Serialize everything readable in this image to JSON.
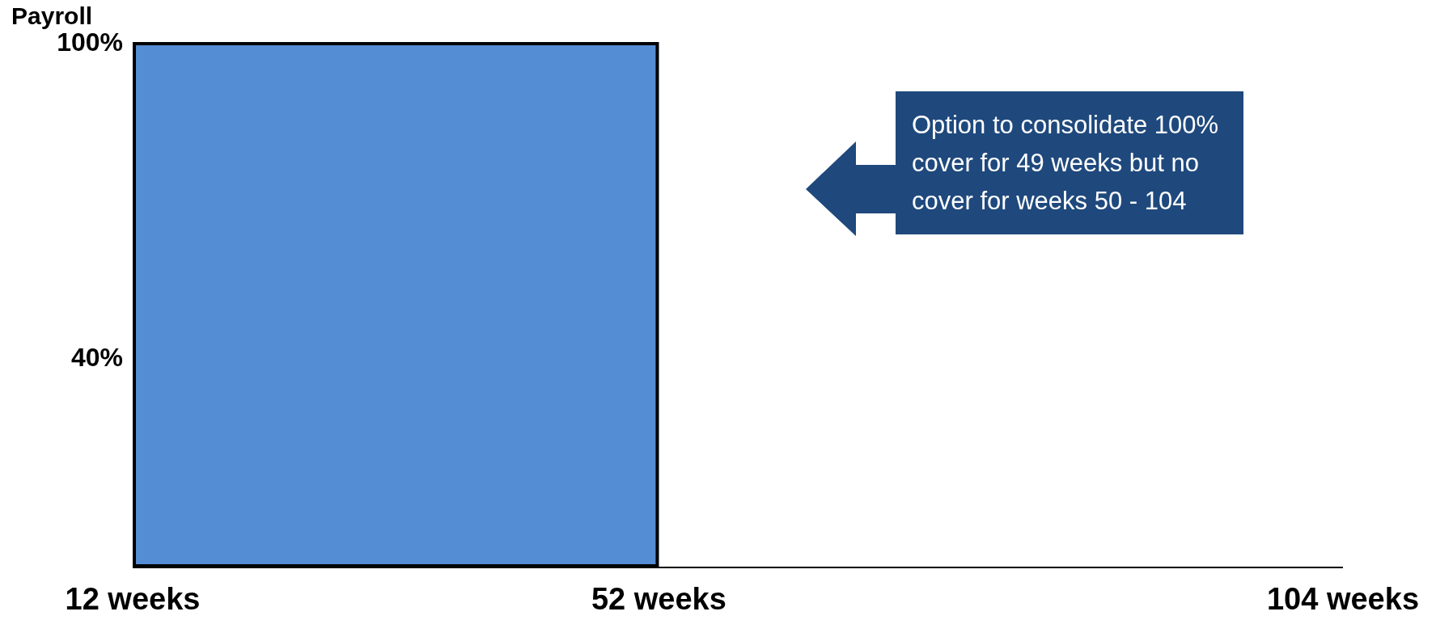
{
  "chart_data": {
    "type": "area",
    "ylabel": "Payroll",
    "x": [
      12,
      52
    ],
    "series": [
      {
        "color": "#548dd4",
        "values": [
          100,
          100
        ]
      }
    ],
    "xlim": [
      12,
      104
    ],
    "xticks": [
      {
        "value": 12,
        "label": "12 weeks"
      },
      {
        "value": 52,
        "label": "52 weeks"
      },
      {
        "value": 104,
        "label": "104 weeks"
      }
    ],
    "ylim": [
      0,
      100
    ],
    "yticks": [
      {
        "value": 40,
        "label": "40%"
      },
      {
        "value": 100,
        "label": "100%"
      }
    ],
    "grid": false,
    "annotations": [
      "Option to consolidate 100% cover for 49 weeks but no cover for weeks 50 - 104"
    ]
  }
}
